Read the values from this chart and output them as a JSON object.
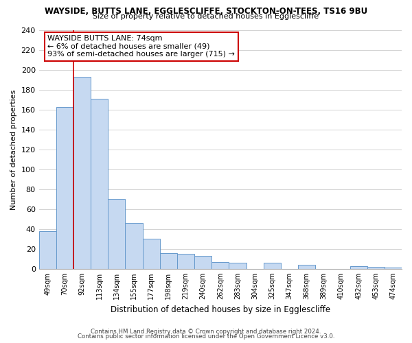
{
  "title1": "WAYSIDE, BUTTS LANE, EGGLESCLIFFE, STOCKTON-ON-TEES, TS16 9BU",
  "title2": "Size of property relative to detached houses in Egglescliffe",
  "xlabel": "Distribution of detached houses by size in Egglescliffe",
  "ylabel": "Number of detached properties",
  "bar_labels": [
    "49sqm",
    "70sqm",
    "92sqm",
    "113sqm",
    "134sqm",
    "155sqm",
    "177sqm",
    "198sqm",
    "219sqm",
    "240sqm",
    "262sqm",
    "283sqm",
    "304sqm",
    "325sqm",
    "347sqm",
    "368sqm",
    "389sqm",
    "410sqm",
    "432sqm",
    "453sqm",
    "474sqm"
  ],
  "bar_values": [
    38,
    163,
    193,
    171,
    70,
    46,
    30,
    16,
    15,
    13,
    7,
    6,
    0,
    6,
    0,
    4,
    0,
    0,
    3,
    2,
    1
  ],
  "bar_color": "#c6d9f1",
  "bar_edge_color": "#6699cc",
  "ylim": [
    0,
    240
  ],
  "yticks": [
    0,
    20,
    40,
    60,
    80,
    100,
    120,
    140,
    160,
    180,
    200,
    220,
    240
  ],
  "vline_color": "#cc0000",
  "annotation_line1": "WAYSIDE BUTTS LANE: 74sqm",
  "annotation_line2": "← 6% of detached houses are smaller (49)",
  "annotation_line3": "93% of semi-detached houses are larger (715) →",
  "footer1": "Contains HM Land Registry data © Crown copyright and database right 2024.",
  "footer2": "Contains public sector information licensed under the Open Government Licence v3.0.",
  "background_color": "#ffffff",
  "grid_color": "#cccccc"
}
